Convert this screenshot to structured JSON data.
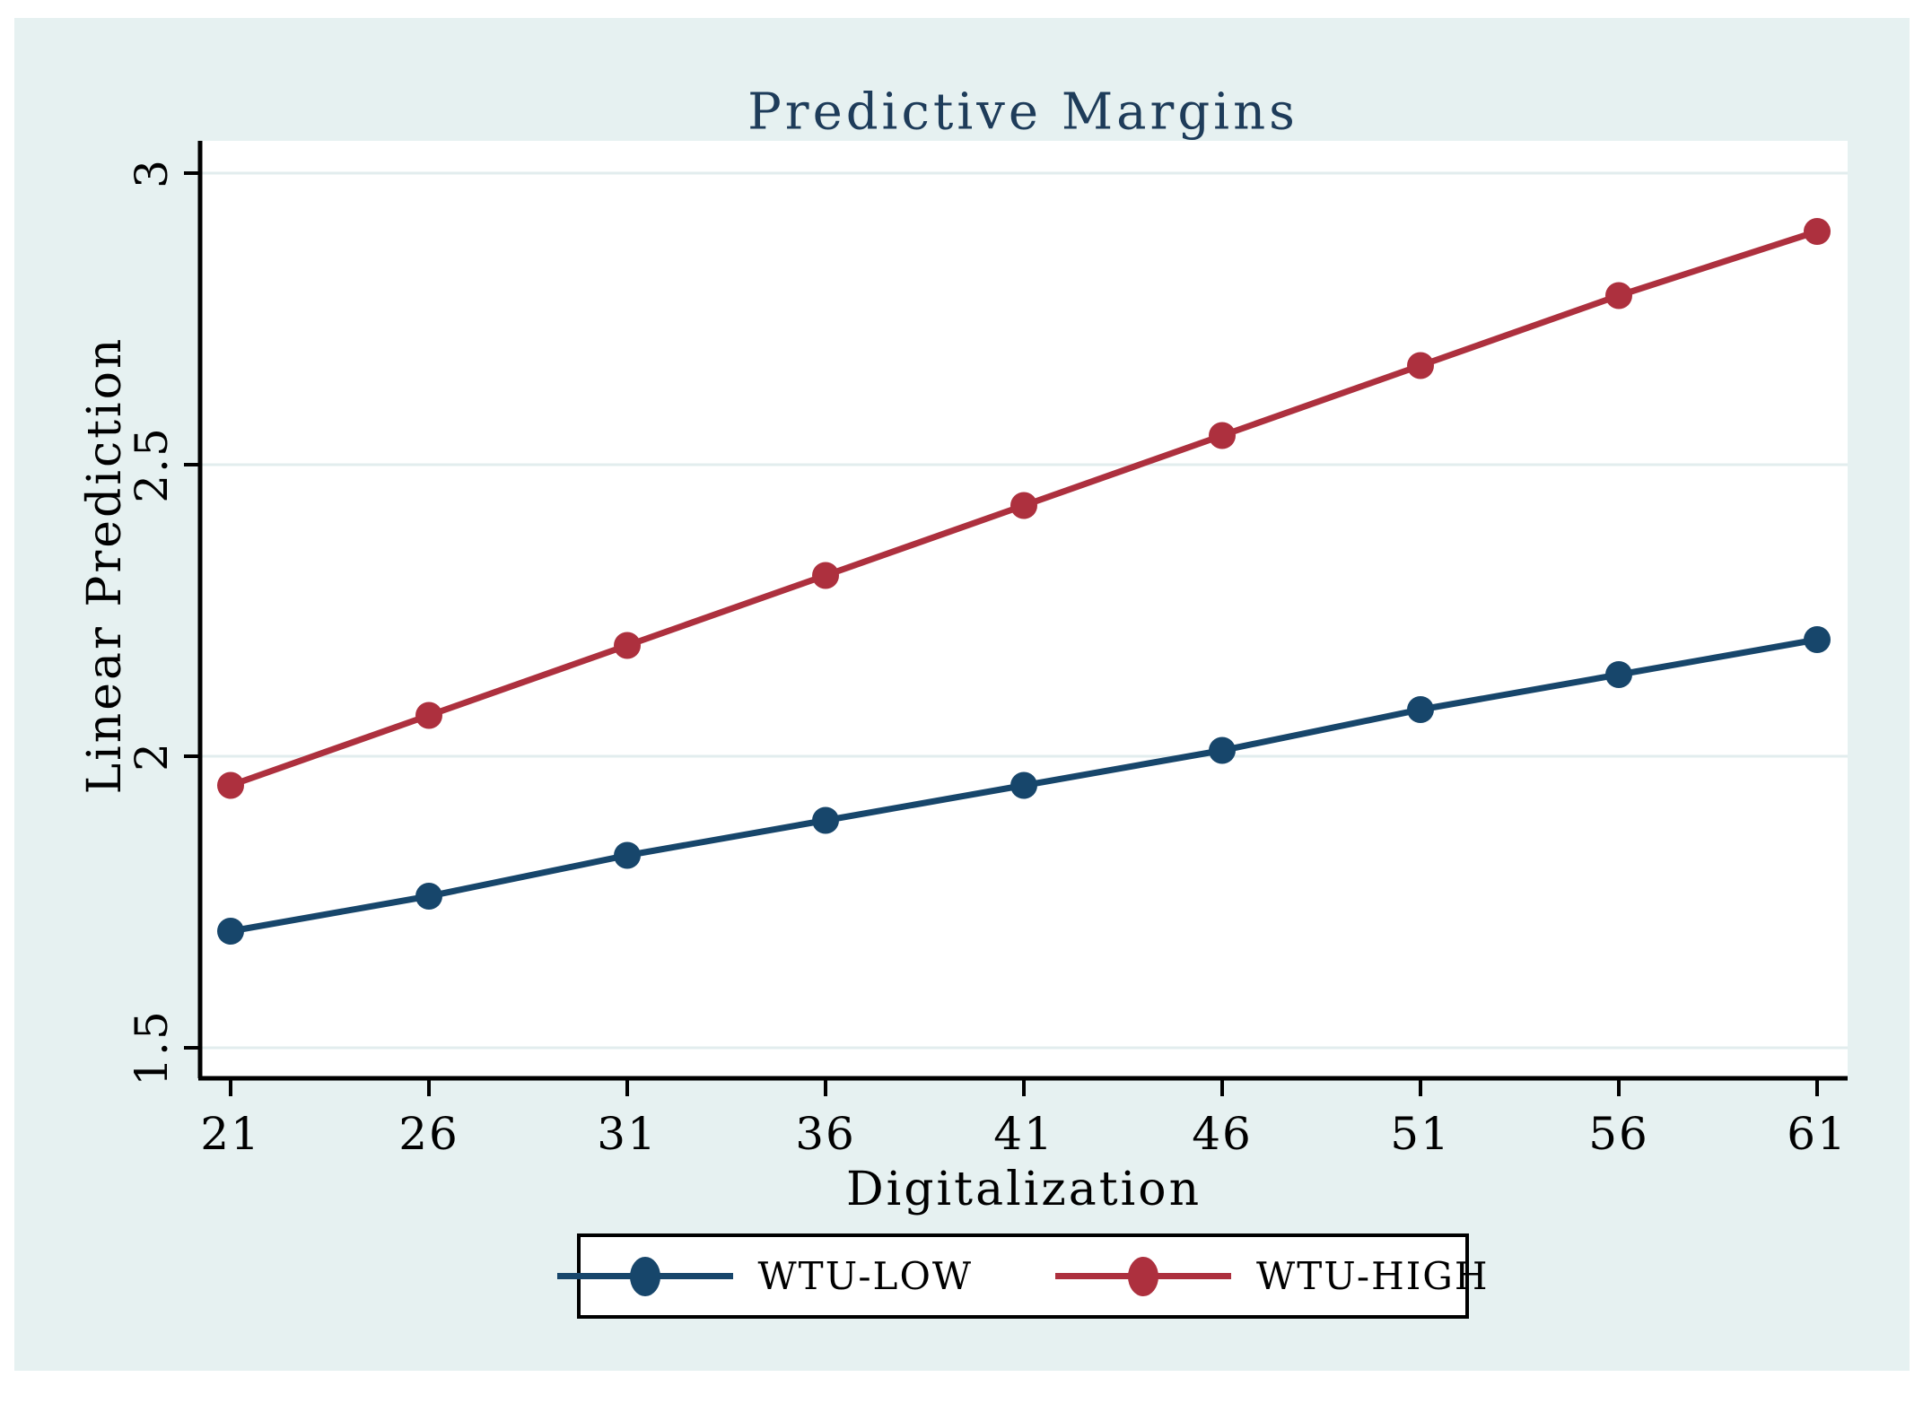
{
  "colors": {
    "page_background": "#ffffff",
    "canvas_background": "#e6f1f1",
    "plot_background": "#ffffff",
    "gridline": "#e2edee",
    "axis": "#000000",
    "title_text": "#1e3c5a",
    "tick_text": "#000000"
  },
  "chart_data": {
    "type": "line",
    "title": "Predictive Margins",
    "xlabel": "Digitalization",
    "ylabel": "Linear Prediction",
    "x": [
      21,
      26,
      31,
      36,
      41,
      46,
      51,
      56,
      61
    ],
    "series": [
      {
        "name": "WTU-LOW",
        "color": "#17466b",
        "values": [
          1.7,
          1.76,
          1.83,
          1.89,
          1.95,
          2.01,
          2.08,
          2.14,
          2.2
        ]
      },
      {
        "name": "WTU-HIGH",
        "color": "#ad303e",
        "values": [
          1.95,
          2.07,
          2.19,
          2.31,
          2.43,
          2.55,
          2.67,
          2.79,
          2.9
        ]
      }
    ],
    "xticks": [
      "21",
      "26",
      "31",
      "36",
      "41",
      "46",
      "51",
      "56",
      "61"
    ],
    "yticks": [
      "1.5",
      "2",
      "2.5",
      "3"
    ],
    "xlim": [
      20.2,
      61.8
    ],
    "ylim": [
      1.45,
      3.06
    ],
    "grid": true,
    "legend_position": "bottom-center"
  }
}
